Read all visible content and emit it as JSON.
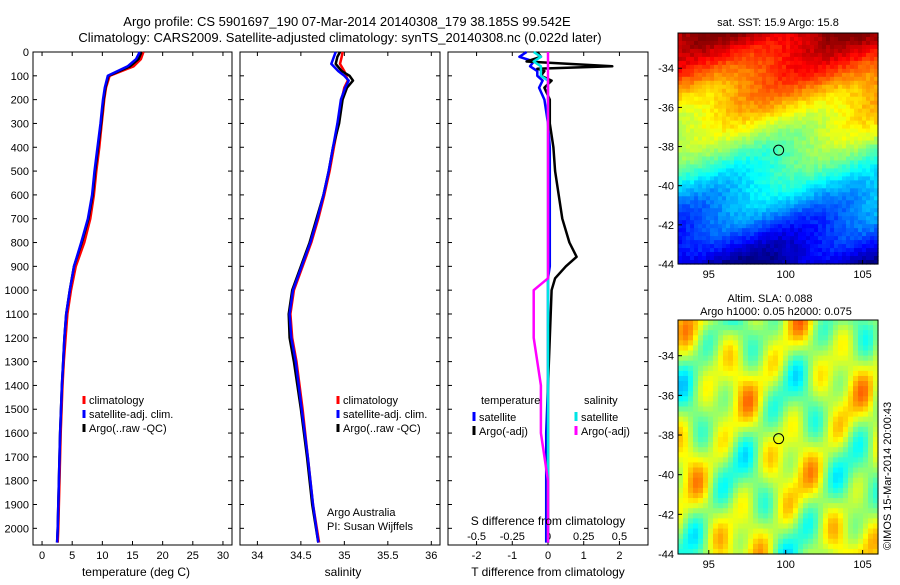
{
  "header": {
    "line1": "Argo profile: CS 5901697_190 07-Mar-2014 20140308_179 38.185S 99.542E",
    "line2": "Climatology: CARS2009. Satellite-adjusted climatology: synTS_20140308.nc (0.022d later)"
  },
  "colors": {
    "climatology": "#ff0000",
    "satellite": "#0000ff",
    "argo": "#000000",
    "salinity_satellite": "#00e5e5",
    "salinity_argo": "#ff00ff"
  },
  "depth_axis": {
    "ticks": [
      "0",
      "100",
      "200",
      "300",
      "400",
      "500",
      "600",
      "700",
      "800",
      "900",
      "1000",
      "1100",
      "1200",
      "1300",
      "1400",
      "1500",
      "1600",
      "1700",
      "1800",
      "1900",
      "2000"
    ],
    "ylim": [
      0,
      2070
    ]
  },
  "chart_data": [
    {
      "type": "line",
      "name": "temperature",
      "xlabel": "temperature (deg C)",
      "xlim": [
        -1.5,
        31.5
      ],
      "xticks": [
        "0",
        "5",
        "10",
        "15",
        "20",
        "25",
        "30"
      ],
      "xtick_values": [
        0,
        5,
        10,
        15,
        20,
        25,
        30
      ],
      "depth": [
        0,
        30,
        60,
        100,
        150,
        200,
        250,
        300,
        400,
        500,
        600,
        700,
        800,
        900,
        1000,
        1100,
        1200,
        1300,
        1400,
        1600,
        1800,
        2000,
        2060
      ],
      "series": [
        {
          "key": "climatology",
          "label": "climatology",
          "values": [
            16.8,
            16.4,
            15.2,
            11.2,
            10.6,
            10.3,
            10.1,
            9.9,
            9.5,
            9.0,
            8.6,
            8.0,
            7.0,
            5.6,
            4.8,
            4.2,
            3.9,
            3.6,
            3.4,
            3.1,
            2.9,
            2.7,
            2.6
          ]
        },
        {
          "key": "argo",
          "label": "Argo(..raw -QC)",
          "values": [
            16.5,
            16.0,
            14.6,
            11.0,
            10.5,
            10.2,
            10.0,
            9.8,
            9.3,
            8.8,
            8.4,
            7.7,
            6.6,
            5.3,
            4.6,
            4.0,
            3.7,
            3.5,
            3.3,
            3.0,
            2.8,
            2.6,
            2.5
          ]
        },
        {
          "key": "satellite",
          "label": "satellite-adj. clim.",
          "values": [
            16.2,
            15.6,
            14.2,
            10.9,
            10.4,
            10.1,
            9.9,
            9.7,
            9.2,
            8.7,
            8.3,
            7.6,
            6.5,
            5.3,
            4.6,
            4.0,
            3.7,
            3.5,
            3.3,
            3.0,
            2.8,
            2.6,
            2.5
          ]
        }
      ],
      "legend": [
        "climatology",
        "satellite-adj. clim.",
        "Argo(..raw -QC)"
      ]
    },
    {
      "type": "line",
      "name": "salinity",
      "xlabel": "salinity",
      "xlim": [
        33.8,
        36.1
      ],
      "xticks": [
        "34",
        "34.5",
        "35",
        "35.5",
        "36"
      ],
      "xtick_values": [
        34,
        34.5,
        35,
        35.5,
        36
      ],
      "depth": [
        0,
        20,
        50,
        80,
        100,
        120,
        150,
        200,
        300,
        400,
        500,
        600,
        700,
        800,
        900,
        1000,
        1100,
        1200,
        1300,
        1500,
        1700,
        1900,
        2060
      ],
      "series": [
        {
          "key": "climatology",
          "label": "climatology",
          "values": [
            34.98,
            34.97,
            34.95,
            35.0,
            35.02,
            35.04,
            35.0,
            34.97,
            34.93,
            34.88,
            34.83,
            34.77,
            34.7,
            34.62,
            34.52,
            34.42,
            34.38,
            34.4,
            34.45,
            34.52,
            34.58,
            34.64,
            34.71
          ]
        },
        {
          "key": "argo",
          "label": "Argo(..raw -QC)",
          "values": [
            34.95,
            34.92,
            34.9,
            34.97,
            35.06,
            35.1,
            35.03,
            34.98,
            34.94,
            34.87,
            34.82,
            34.76,
            34.68,
            34.6,
            34.5,
            34.4,
            34.36,
            34.37,
            34.42,
            34.5,
            34.57,
            34.63,
            34.7
          ]
        },
        {
          "key": "satellite",
          "label": "satellite-adj. clim.",
          "values": [
            34.9,
            34.88,
            34.85,
            34.93,
            35.0,
            35.05,
            35.01,
            34.96,
            34.92,
            34.87,
            34.82,
            34.76,
            34.69,
            34.61,
            34.51,
            34.41,
            34.37,
            34.39,
            34.44,
            34.51,
            34.58,
            34.64,
            34.7
          ]
        }
      ],
      "legend": [
        "climatology",
        "satellite-adj. clim.",
        "Argo(..raw -QC)"
      ]
    },
    {
      "type": "line",
      "name": "differences",
      "xlabel": "T difference from climatology",
      "xlabel_top": "S difference from climatology",
      "xlim": [
        -2.8,
        2.8
      ],
      "xticks": [
        "-2",
        "-1",
        "0",
        "1",
        "2"
      ],
      "xtick_values": [
        -2,
        -1,
        0,
        1,
        2
      ],
      "xticks_top": [
        "-0.5",
        "-0.25",
        "0",
        "0.25",
        "0.5"
      ],
      "xticks_top_values": [
        -0.5,
        -0.25,
        0,
        0.25,
        0.5
      ],
      "depth": [
        0,
        20,
        40,
        60,
        70,
        80,
        100,
        120,
        150,
        200,
        300,
        400,
        500,
        600,
        700,
        800,
        860,
        900,
        950,
        1000,
        1200,
        1400,
        1600,
        1800,
        2060
      ],
      "series": [
        {
          "key": "satellite",
          "label": "satellite",
          "group": "temperature",
          "values": [
            -0.6,
            -0.8,
            -0.4,
            -0.5,
            -0.4,
            -0.3,
            -0.3,
            -0.15,
            -0.25,
            -0.1,
            0.0,
            0.05,
            0.05,
            0.05,
            0.05,
            0.05,
            0.05,
            0.05,
            0.0,
            0.0,
            0.0,
            0.0,
            -0.05,
            -0.05,
            -0.05
          ]
        },
        {
          "key": "argo",
          "label": "Argo(-adj)",
          "group": "temperature",
          "values": [
            -0.3,
            -0.2,
            -0.6,
            1.8,
            -0.3,
            -0.1,
            -0.2,
            0.1,
            -0.1,
            0.05,
            0.05,
            0.15,
            0.2,
            0.3,
            0.4,
            0.6,
            0.8,
            0.5,
            0.2,
            0.1,
            0.05,
            0.0,
            0.0,
            0.0,
            0.0
          ]
        },
        {
          "key": "salinity_satellite",
          "label": "satellite",
          "group": "salinity",
          "values": [
            -0.1,
            -0.05,
            -0.1,
            -0.05,
            -0.05,
            -0.05,
            -0.05,
            0.0,
            0.0,
            0.0,
            0.0,
            0.0,
            0.0,
            0.0,
            0.0,
            0.0,
            0.0,
            0.0,
            0.0,
            0.0,
            0.0,
            0.0,
            0.0,
            0.0,
            0.0
          ]
        },
        {
          "key": "salinity_argo",
          "label": "Argo(-adj)",
          "group": "salinity",
          "values": [
            0.0,
            0.0,
            0.0,
            0.0,
            0.0,
            0.0,
            0.0,
            0.0,
            0.0,
            0.0,
            0.0,
            0.0,
            0.0,
            0.0,
            0.0,
            0.0,
            0.0,
            0.0,
            0.0,
            -0.1,
            -0.1,
            -0.05,
            -0.05,
            0.0,
            0.0
          ]
        }
      ],
      "legend_headers": [
        "temperature",
        "salinity"
      ]
    },
    {
      "type": "heatmap",
      "name": "sst_map",
      "title": "sat. SST: 15.9 Argo: 15.8",
      "xlim": [
        93,
        106
      ],
      "ylim": [
        -44,
        -32.2
      ],
      "xticks": [
        "95",
        "100",
        "105"
      ],
      "xtick_values": [
        95,
        100,
        105
      ],
      "yticks": [
        "-34",
        "-36",
        "-38",
        "-40",
        "-42",
        "-44"
      ],
      "ytick_values": [
        -34,
        -36,
        -38,
        -40,
        -42,
        -44
      ],
      "marker": {
        "lon": 99.542,
        "lat": -38.185
      }
    },
    {
      "type": "heatmap",
      "name": "sla_map",
      "title_line1": "Altim. SLA: 0.088",
      "title_line2": "Argo h1000: 0.05 h2000: 0.075",
      "xlim": [
        93,
        106
      ],
      "ylim": [
        -44,
        -32.2
      ],
      "xticks": [
        "95",
        "100",
        "105"
      ],
      "xtick_values": [
        95,
        100,
        105
      ],
      "yticks": [
        "-34",
        "-36",
        "-38",
        "-40",
        "-42",
        "-44"
      ],
      "ytick_values": [
        -34,
        -36,
        -38,
        -40,
        -42,
        -44
      ],
      "marker": {
        "lon": 99.542,
        "lat": -38.185
      }
    }
  ],
  "credits": {
    "line1": "Argo Australia",
    "line2": "PI: Susan Wijffels",
    "side_stamp": "©IMOS 15-Mar-2014 20:00:43"
  }
}
